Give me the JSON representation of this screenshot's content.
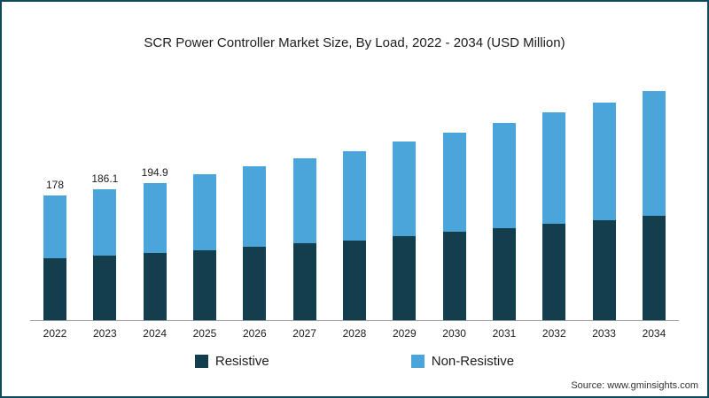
{
  "title": "SCR Power Controller Market Size, By Load, 2022 - 2034 (USD Million)",
  "source": "Source: www.gminsights.com",
  "frame": {
    "border_color": "#0e4a5c"
  },
  "legend": [
    {
      "label": "Resistive",
      "color": "#123e4d"
    },
    {
      "label": "Non-Resistive",
      "color": "#4aa5da"
    }
  ],
  "chart_data": {
    "type": "bar",
    "stacked": true,
    "title": "SCR Power Controller Market Size, By Load, 2022 - 2034 (USD Million)",
    "xlabel": "",
    "ylabel": "USD Million",
    "ylim": [
      0,
      340
    ],
    "grid": false,
    "legend_position": "bottom",
    "categories": [
      "2022",
      "2023",
      "2024",
      "2025",
      "2026",
      "2027",
      "2028",
      "2029",
      "2030",
      "2031",
      "2032",
      "2033",
      "2034"
    ],
    "series": [
      {
        "name": "Resistive",
        "color": "#123e4d",
        "values": [
          88,
          91.5,
          95.4,
          99.5,
          104,
          109,
          113.5,
          119.5,
          126,
          131.5,
          137.5,
          142.5,
          149
        ]
      },
      {
        "name": "Non-Resistive",
        "color": "#4aa5da",
        "values": [
          90,
          94.6,
          99.5,
          108.5,
          115,
          121,
          127.5,
          134.5,
          141,
          149.5,
          158.5,
          167.5,
          178
        ]
      }
    ],
    "totals": [
      178,
      186.1,
      194.9,
      208,
      219,
      230,
      241,
      254,
      267,
      281,
      296,
      310,
      327
    ],
    "data_labels": [
      "178",
      "186.1",
      "194.9",
      "",
      "",
      "",
      "",
      "",
      "",
      "",
      "",
      "",
      ""
    ]
  }
}
